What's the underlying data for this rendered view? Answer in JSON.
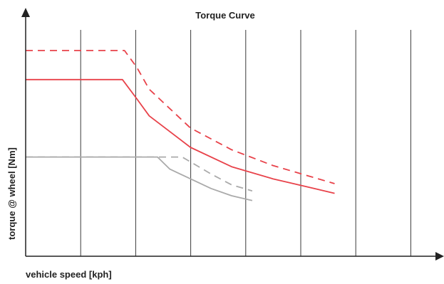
{
  "chart_data": {
    "type": "line",
    "title": "Torque Curve",
    "xlabel": "vehicle speed [kph]",
    "ylabel": "torque @ wheel [Nm]",
    "xlim": [
      0,
      10
    ],
    "ylim": [
      0,
      10
    ],
    "grid": {
      "x": true,
      "y": false
    },
    "x_ticks": [
      1,
      2,
      3,
      4,
      5,
      6,
      7,
      8
    ],
    "series": [
      {
        "style": "dashed",
        "color": "#e8424a",
        "x": [
          0,
          2.4,
          2.7,
          3.0,
          4.0,
          5.0,
          6.0,
          7.0,
          7.5
        ],
        "y": [
          8.5,
          8.5,
          7.8,
          6.9,
          5.3,
          4.4,
          3.75,
          3.25,
          3.0
        ]
      },
      {
        "style": "solid",
        "color": "#e8424a",
        "x": [
          0,
          2.35,
          2.7,
          3.0,
          4.0,
          5.0,
          6.0,
          7.0,
          7.5
        ],
        "y": [
          7.3,
          7.3,
          6.5,
          5.8,
          4.5,
          3.7,
          3.2,
          2.8,
          2.6
        ]
      },
      {
        "style": "dashed",
        "color": "#aaaaaa",
        "x": [
          0,
          3.7,
          3.8,
          4.0,
          4.5,
          5.0,
          5.5
        ],
        "y": [
          4.1,
          4.1,
          4.1,
          3.9,
          3.4,
          2.95,
          2.7
        ]
      },
      {
        "style": "solid",
        "color": "#aaaaaa",
        "x": [
          0,
          3.2,
          3.5,
          4.0,
          4.5,
          5.0,
          5.5
        ],
        "y": [
          4.1,
          4.1,
          3.6,
          3.2,
          2.8,
          2.5,
          2.3
        ]
      }
    ]
  }
}
